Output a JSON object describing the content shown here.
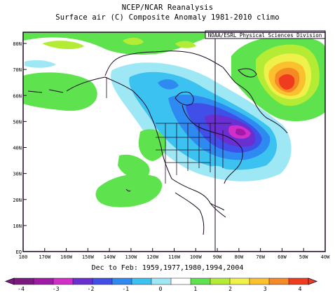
{
  "title_line1": "NCEP/NCAR Reanalysis",
  "title_line2": "Surface air (C) Composite Anomaly 1981-2010 climo",
  "credit": "NOAA/ESRL Physical Sciences Division",
  "caption": "Dec to Feb: 1959,1977,1980,1994,2004",
  "lat_ticks": [
    "80N",
    "70N",
    "60N",
    "50N",
    "40N",
    "30N",
    "20N",
    "10N",
    "EQ"
  ],
  "lon_ticks": [
    "180",
    "170W",
    "160W",
    "150W",
    "140W",
    "130W",
    "120W",
    "110W",
    "100W",
    "90W",
    "80W",
    "70W",
    "60W",
    "50W",
    "40W"
  ],
  "colorbar": {
    "labels": [
      "-4",
      "-3",
      "-2",
      "-1",
      "0",
      "1",
      "2",
      "3",
      "4"
    ],
    "colors": [
      "#7a1a7f",
      "#a01aa8",
      "#d22ec8",
      "#6a2fd0",
      "#3f4fe8",
      "#2e8af0",
      "#3cc2f0",
      "#9ee8f5",
      "#ffffff",
      "#5ee34e",
      "#b4ec35",
      "#eff04a",
      "#fbc02e",
      "#f58a25",
      "#ef3c1e"
    ]
  },
  "regions": {
    "cold_anomaly": "Central and eastern North America",
    "warm_anomaly": "Labrador Sea / eastern Canada"
  }
}
